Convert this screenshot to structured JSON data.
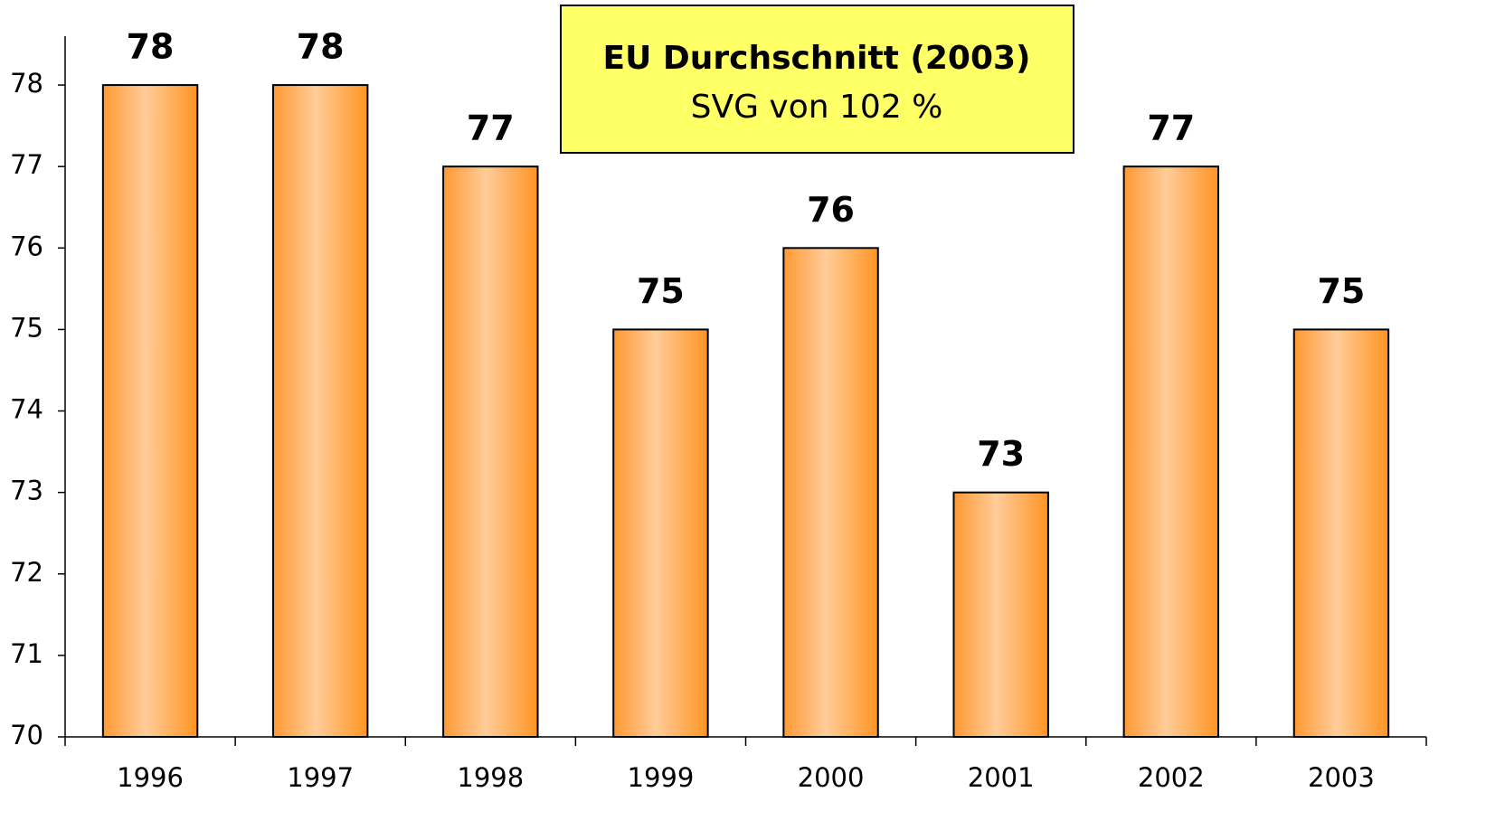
{
  "chart_data": {
    "type": "bar",
    "annotation": {
      "title": "EU Durchschnitt (2003)",
      "text": "SVG von 102 %"
    },
    "categories": [
      "1996",
      "1997",
      "1998",
      "1999",
      "2000",
      "2001",
      "2002",
      "2003"
    ],
    "values": [
      78,
      78,
      77,
      75,
      76,
      73,
      77,
      75
    ],
    "color": "#ff9933",
    "ylim": [
      70,
      78.6
    ],
    "yticks": [
      70,
      71,
      72,
      73,
      74,
      75,
      76,
      77,
      78
    ],
    "grid": false
  }
}
